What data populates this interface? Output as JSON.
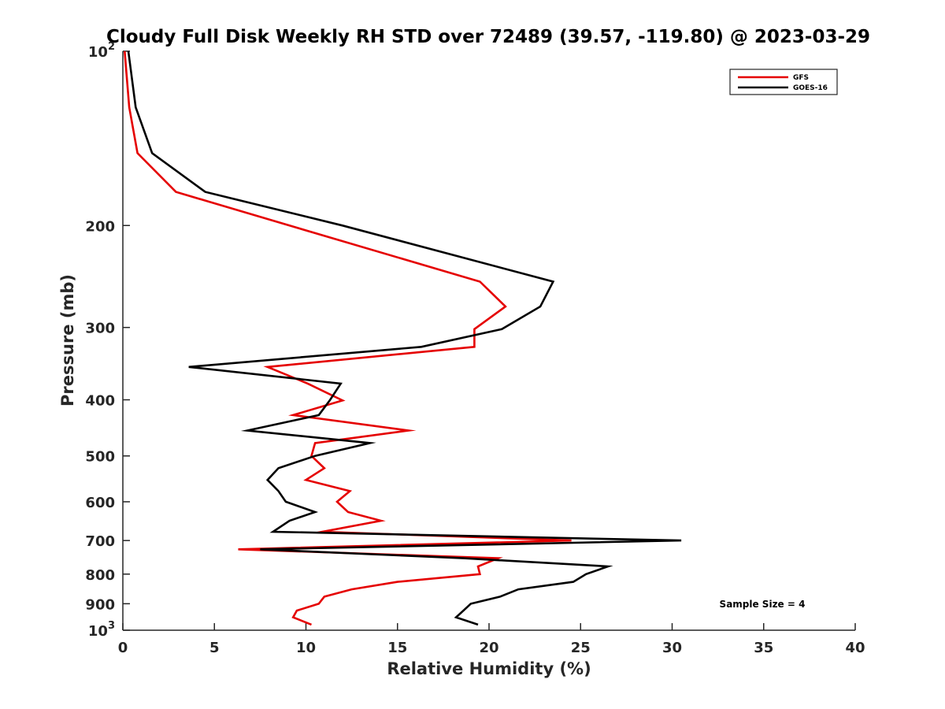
{
  "chart_data": {
    "type": "line",
    "title": "Cloudy Full Disk Weekly RH STD over 72489 (39.57, -119.80) @ 2023-03-29",
    "xlabel": "Relative Humidity (%)",
    "ylabel": "Pressure (mb)",
    "xlim": [
      0,
      40
    ],
    "ylim": [
      100,
      1000
    ],
    "y_scale": "log",
    "y_reversed": true,
    "grid": false,
    "legend_position": "top-right",
    "x_ticks": [
      "0",
      "5",
      "10",
      "15",
      "20",
      "25",
      "30",
      "35",
      "40"
    ],
    "y_ticks": [
      {
        "value": 100,
        "base": "10",
        "exp": "2"
      },
      {
        "value": 200,
        "base": "200",
        "exp": ""
      },
      {
        "value": 300,
        "base": "300",
        "exp": ""
      },
      {
        "value": 400,
        "base": "400",
        "exp": ""
      },
      {
        "value": 500,
        "base": "500",
        "exp": ""
      },
      {
        "value": 600,
        "base": "600",
        "exp": ""
      },
      {
        "value": 700,
        "base": "700",
        "exp": ""
      },
      {
        "value": 800,
        "base": "800",
        "exp": ""
      },
      {
        "value": 900,
        "base": "900",
        "exp": ""
      },
      {
        "value": 1000,
        "base": "10",
        "exp": "3"
      }
    ],
    "series": [
      {
        "name": "GFS",
        "color": "#e50000",
        "points": [
          [
            0.1,
            100
          ],
          [
            0.35,
            125
          ],
          [
            0.8,
            150
          ],
          [
            2.9,
            175
          ],
          [
            9.1,
            200
          ],
          [
            19.5,
            250
          ],
          [
            20.9,
            276
          ],
          [
            19.2,
            302
          ],
          [
            19.2,
            324
          ],
          [
            7.9,
            351
          ],
          [
            10.1,
            375
          ],
          [
            12.0,
            401
          ],
          [
            9.3,
            425
          ],
          [
            15.6,
            452
          ],
          [
            10.5,
            475
          ],
          [
            10.3,
            500
          ],
          [
            11.0,
            525
          ],
          [
            10.0,
            550
          ],
          [
            12.4,
            575
          ],
          [
            11.7,
            600
          ],
          [
            12.3,
            625
          ],
          [
            14.1,
            647
          ],
          [
            10.9,
            676
          ],
          [
            24.5,
            700
          ],
          [
            6.3,
            725
          ],
          [
            20.5,
            751
          ],
          [
            19.4,
            776
          ],
          [
            19.5,
            800
          ],
          [
            15.0,
            825
          ],
          [
            12.5,
            850
          ],
          [
            11.0,
            875
          ],
          [
            10.7,
            900
          ],
          [
            9.5,
            925
          ],
          [
            9.3,
            950
          ],
          [
            10.3,
            978
          ]
        ]
      },
      {
        "name": "GOES-16",
        "color": "#000000",
        "points": [
          [
            0.3,
            100
          ],
          [
            0.7,
            125
          ],
          [
            1.6,
            150
          ],
          [
            4.5,
            175
          ],
          [
            12.0,
            200
          ],
          [
            23.5,
            250
          ],
          [
            22.8,
            276
          ],
          [
            20.7,
            302
          ],
          [
            16.3,
            324
          ],
          [
            3.6,
            351
          ],
          [
            11.9,
            375
          ],
          [
            11.3,
            401
          ],
          [
            10.7,
            425
          ],
          [
            6.8,
            452
          ],
          [
            13.5,
            475
          ],
          [
            10.5,
            500
          ],
          [
            8.5,
            525
          ],
          [
            7.9,
            550
          ],
          [
            8.5,
            575
          ],
          [
            8.9,
            600
          ],
          [
            10.5,
            625
          ],
          [
            9.1,
            647
          ],
          [
            8.2,
            676
          ],
          [
            30.5,
            700
          ],
          [
            7.5,
            725
          ],
          [
            18.6,
            751
          ],
          [
            26.5,
            776
          ],
          [
            25.3,
            800
          ],
          [
            24.6,
            825
          ],
          [
            21.6,
            850
          ],
          [
            20.6,
            875
          ],
          [
            19.0,
            900
          ],
          [
            18.6,
            925
          ],
          [
            18.2,
            950
          ],
          [
            19.4,
            978
          ]
        ]
      }
    ],
    "annotation": "Sample Size = 4"
  }
}
